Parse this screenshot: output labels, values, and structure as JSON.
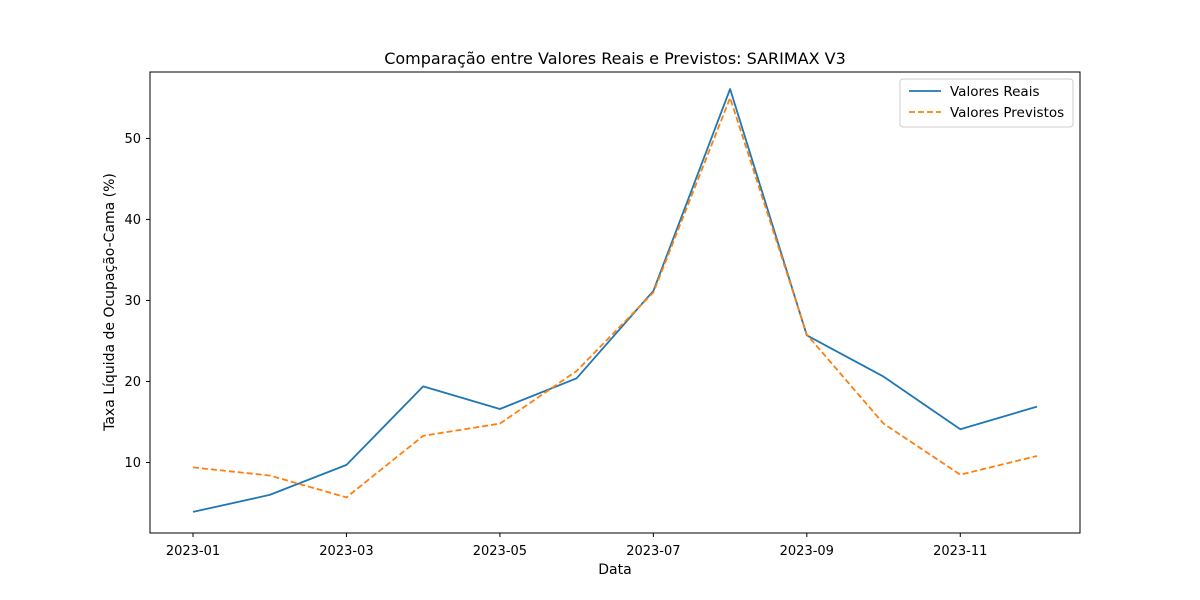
{
  "chart_data": {
    "type": "line",
    "title": "Comparação entre Valores Reais e Previstos: SARIMAX V3",
    "xlabel": "Data",
    "ylabel": "Taxa Líquida de Ocupação-Cama (%)",
    "x": [
      "2023-01",
      "2023-02",
      "2023-03",
      "2023-04",
      "2023-05",
      "2023-06",
      "2023-07",
      "2023-08",
      "2023-09",
      "2023-10",
      "2023-11",
      "2023-12"
    ],
    "x_ticks": [
      "2023-01",
      "2023-03",
      "2023-05",
      "2023-07",
      "2023-09",
      "2023-11"
    ],
    "y_ticks": [
      10,
      20,
      30,
      40,
      50
    ],
    "ylim": [
      1.3,
      58.2
    ],
    "grid": false,
    "legend_position": "top-right",
    "series": [
      {
        "name": "Valores Reais",
        "style": "solid",
        "color": "#1f77b4",
        "values": [
          3.9,
          6.0,
          9.7,
          19.4,
          16.6,
          20.4,
          31.2,
          56.1,
          25.7,
          20.6,
          14.1,
          16.9
        ]
      },
      {
        "name": "Valores Previstos",
        "style": "dashed",
        "color": "#ff7f0e",
        "values": [
          9.4,
          8.4,
          5.7,
          13.3,
          14.8,
          21.3,
          31.0,
          55.0,
          25.8,
          14.8,
          8.5,
          10.8
        ]
      }
    ]
  }
}
